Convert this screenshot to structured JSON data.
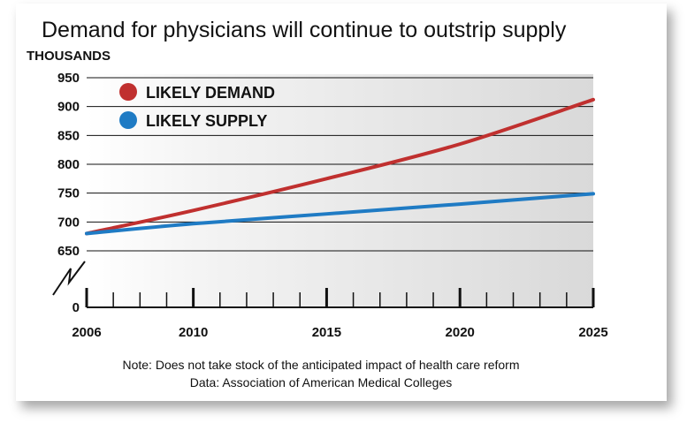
{
  "chart_data": {
    "type": "line",
    "title": "Demand for physicians will continue to outstrip supply",
    "units_label": "THOUSANDS",
    "y_ticks": [
      "950",
      "900",
      "850",
      "800",
      "750",
      "700",
      "650",
      "0"
    ],
    "y_break": true,
    "ylim": [
      650,
      950
    ],
    "x_range": [
      2006,
      2025
    ],
    "x_ticks": [
      "2006",
      "2010",
      "2015",
      "2020",
      "2025"
    ],
    "grid": true,
    "legend_position": "top-left",
    "series": [
      {
        "name": "LIKELY DEMAND",
        "color": "#c0302f",
        "x": [
          2006,
          2010,
          2015,
          2020,
          2025
        ],
        "values": [
          680,
          720,
          775,
          835,
          912
        ]
      },
      {
        "name": "LIKELY SUPPLY",
        "color": "#1f7bc4",
        "x": [
          2006,
          2010,
          2015,
          2020,
          2025
        ],
        "values": [
          680,
          697,
          714,
          731,
          749
        ]
      }
    ],
    "notes": [
      "Note: Does not take stock of the anticipated impact of health care reform",
      "Data: Association of American Medical Colleges"
    ]
  }
}
